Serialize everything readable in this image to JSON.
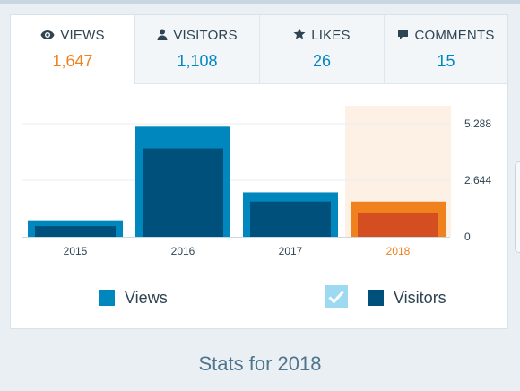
{
  "tabs": [
    {
      "label": "VIEWS",
      "value": "1,647",
      "icon": "eye-icon",
      "active": true
    },
    {
      "label": "VISITORS",
      "value": "1,108",
      "icon": "person-icon",
      "active": false
    },
    {
      "label": "LIKES",
      "value": "26",
      "icon": "star-icon",
      "active": false
    },
    {
      "label": "COMMENTS",
      "value": "15",
      "icon": "comment-icon",
      "active": false
    }
  ],
  "colors": {
    "views": "#0087be",
    "visitors": "#00507c",
    "selected_views": "#f0821e",
    "selected_visitors": "#d54e21",
    "selected_bg": "#fdf1e6",
    "grid": "#e9eff3"
  },
  "chart_data": {
    "type": "bar",
    "categories": [
      "2015",
      "2016",
      "2017",
      "2018"
    ],
    "series": [
      {
        "name": "Views",
        "values": [
          770,
          5150,
          2080,
          1647
        ]
      },
      {
        "name": "Visitors",
        "values": [
          500,
          4130,
          1650,
          1108
        ]
      }
    ],
    "selected_category": "2018",
    "yticks": [
      "5,288",
      "2,644",
      "0"
    ],
    "ylim": [
      0,
      5288
    ],
    "grid": true
  },
  "legend": {
    "views_label": "Views",
    "visitors_label": "Visitors"
  },
  "footer": {
    "title": "Stats for 2018"
  }
}
